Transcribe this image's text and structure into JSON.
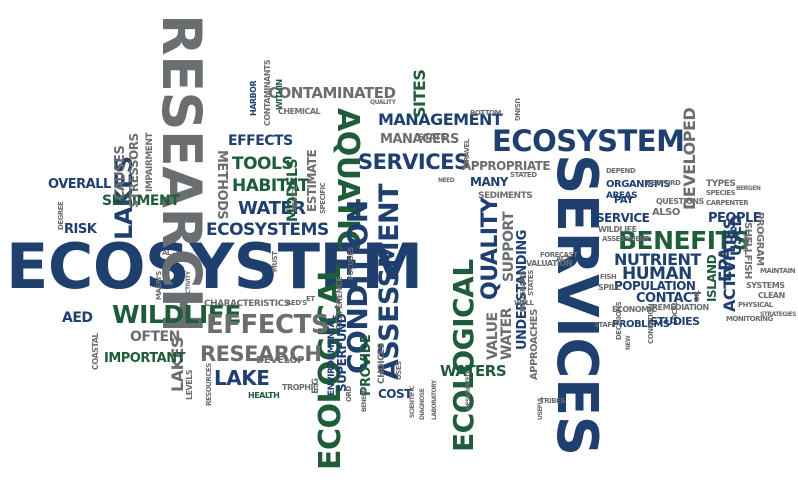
{
  "words": {
    "ecosystem_big": "ECOSYSTEM",
    "research_big": "RESEARCH",
    "services_big": "SERVICES",
    "ecosystem_top": "ECOSYSTEM",
    "ecological_1": "ECOLOGICAL",
    "ecological_2": "ECOLOGICAL",
    "aquatic": "AQUATIC",
    "condition": "CONDITION",
    "assessment_big": "ASSESSMENT",
    "quality": "QUALITY",
    "benefits": "BENEFITS",
    "wildlife": "WILDLIFE",
    "effects_big": "EFFECTS",
    "research_mid": "RESEARCH",
    "lakes_left": "LAKES",
    "lake": "LAKE",
    "lakes_small": "LAKES",
    "management": "MANAGEMENT",
    "services_mid": "SERVICES",
    "contaminated": "CONTAMINATED",
    "managers": "MANAGERS",
    "ecosystems": "ECOSYSTEMS",
    "water": "WATER",
    "habitat": "HABITAT",
    "tools": "TOOLS",
    "methods": "METHODS",
    "effects_small": "EFFECTS",
    "models": "MODELS",
    "estimate": "ESTIMATE",
    "sites": "SITES",
    "overall": "OVERALL",
    "sediment": "SEDIMENT",
    "causes": "CAUSES",
    "stressors": "STRESSORS",
    "impairment": "IMPAIRMENT",
    "risk": "RISK",
    "aed": "AED",
    "often": "OFTEN",
    "important": "IMPORTANT",
    "human": "HUMAN",
    "epa": "EPA",
    "people": "PEOPLE",
    "used": "USED",
    "developed": "DEVELOPED",
    "activities": "ACTIVITIES",
    "nutrient": "NUTRIENT",
    "service": "SERVICE",
    "areas": "AREAS",
    "population": "POPULATION",
    "contact": "CONTACT",
    "many": "MANY",
    "appropriate": "APPROPRIATE",
    "sediments": "SEDIMENTS",
    "support": "SUPPORT",
    "waters": "WATERS",
    "water_2": "WATER",
    "value": "VALUE",
    "understanding": "UNDERSTANDING",
    "approaches": "APPROACHES",
    "provide": "PROVIDE",
    "cost": "COST",
    "superfund": "SUPERFUND",
    "environmental": "ENVIRONMENTAL",
    "characteristics": "CHARACTERISTICS",
    "develop": "DEVELOP",
    "harbor": "HARBOR",
    "contaminants": "CONTAMINANTS",
    "within": "WITHIN",
    "chemical": "CHEMICAL",
    "island": "ISLAND",
    "studies": "STUDIES",
    "remediation": "REMEDIATION",
    "problems": "PROBLEMS",
    "staff": "STAFF",
    "monitoring": "MONITORING",
    "physical": "PHYSICAL",
    "species": "SPECIES",
    "types": "TYPES",
    "program": "PROGRAM",
    "shellfish": "SHELLFISH",
    "systems": "SYSTEMS",
    "clean": "CLEAN",
    "strategies": "STRATEGIES",
    "maintain": "MAINTAIN",
    "state": "STATE",
    "programs": "PROGRAMS",
    "states": "STATES",
    "valuation": "VALUATION",
    "forecast": "FORECAST",
    "choices": "CHOICES",
    "preference": "PREFERENCE",
    "focuses": "FOCUSES",
    "must": "MUST",
    "advice": "ADVICE",
    "specific": "SPECIFIC",
    "quality_small": "QUALITY",
    "bottom": "BOTTOM",
    "using": "USING",
    "travel": "TRAVEL",
    "need": "NEED",
    "stated": "STATED",
    "depend": "DEPEND",
    "organisms": "ORGANISMS",
    "pay": "PAY",
    "also": "ALSO",
    "questions": "QUESTIONS",
    "wildlife_small": "WILDLIFE",
    "assessment_small": "ASSESSMENT",
    "fish": "FISH",
    "spill": "SPILL",
    "oil": "OIL",
    "local": "LOCAL",
    "new": "NEW",
    "economic": "ECONOMIC",
    "decisions": "DECISIONS",
    "condition_small": "CONDITION",
    "designated": "DESIGNATED",
    "useful": "USEFUL",
    "tribes": "TRIBES",
    "laboratory": "LABORATORY",
    "diagnose": "DIAGNOSE",
    "scientific": "SCIENTIFIC",
    "uses": "USES",
    "benefit": "BENEFIT",
    "ord": "ORD",
    "health": "HEALTH",
    "trophic": "TROPHIC",
    "eg": "E.G",
    "resources": "RESOURCES",
    "levels": "LEVELS",
    "coastal": "COASTAL",
    "degree": "DEGREE",
    "al": "AL",
    "activity": "ACTIVITY",
    "maeri": "MAERI'S",
    "aeds": "AED'S",
    "et": "ET",
    "well": "WELL",
    "act": "ACT",
    "bergen": "BERGEN",
    "bedford": "BEDFORD",
    "book": "BOOK",
    "carpenter": "CARPENTER"
  },
  "colors": {
    "blue": "#1f3f6e",
    "green": "#1e5c3a",
    "gray": "#6b6e70",
    "black": "#2b2b2b",
    "background": "#ffffff"
  }
}
